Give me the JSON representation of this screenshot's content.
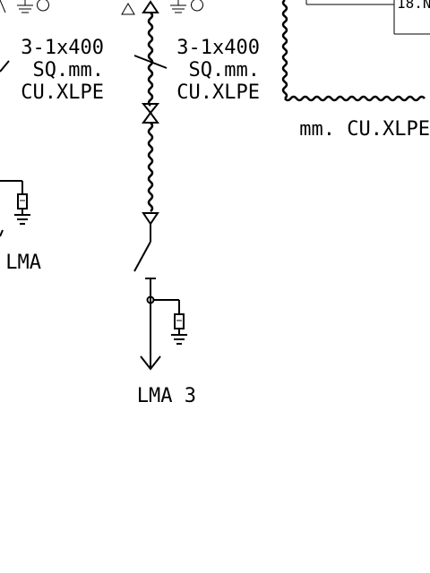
{
  "cables": {
    "left": {
      "size": "3-1x400",
      "unit": "SQ.mm.",
      "type": "CU.XLPE"
    },
    "center": {
      "size": "3-1x400",
      "unit": "SQ.mm.",
      "type": "CU.XLPE"
    },
    "right": {
      "type_partial": "mm. CU.XLPE"
    }
  },
  "feeders": {
    "left": {
      "label_partial": "LMA"
    },
    "center": {
      "label": "LMA 3"
    }
  },
  "panel": {
    "label_partial": "18.N"
  }
}
